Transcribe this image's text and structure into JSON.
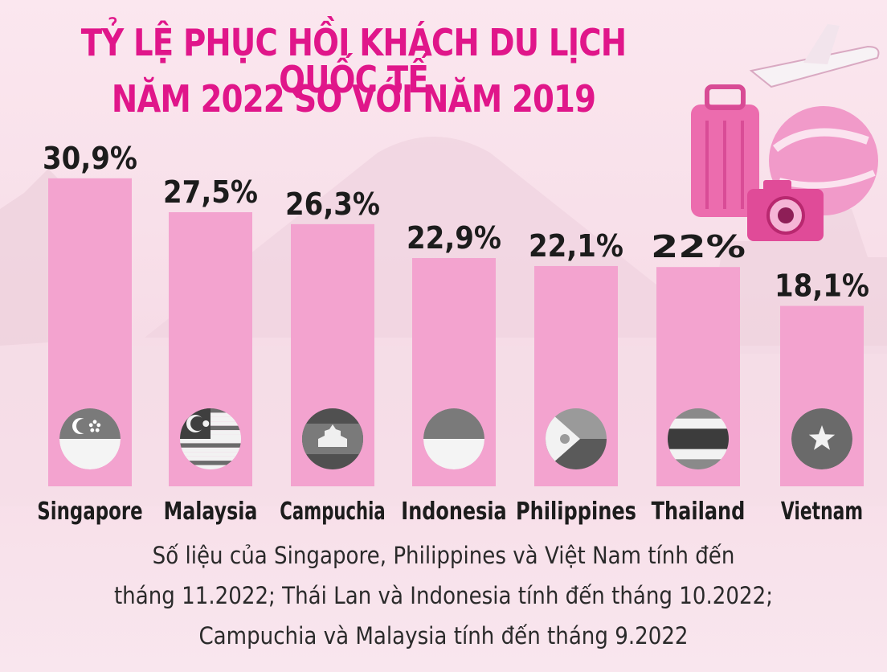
{
  "title_line1": "TỶ LỆ PHỤC HỒI KHÁCH DU LỊCH QUỐC TẾ",
  "title_line2": "NĂM 2022 SO VỚI NĂM 2019",
  "colors": {
    "title": "#e0168a",
    "bar": "#f3a3cf",
    "text": "#1c1c1c"
  },
  "chart_data": {
    "type": "bar",
    "categories": [
      "Singapore",
      "Malaysia",
      "Campuchia",
      "Indonesia",
      "Philippines",
      "Thailand",
      "Vietnam"
    ],
    "values": [
      30.9,
      27.5,
      26.3,
      22.9,
      22.1,
      22.0,
      18.1
    ],
    "value_labels": [
      "30,9%",
      "27,5%",
      "26,3%",
      "22,9%",
      "22,1%",
      "22%",
      "18,1%"
    ],
    "flags": [
      "singapore-flag-icon",
      "malaysia-flag-icon",
      "cambodia-flag-icon",
      "indonesia-flag-icon",
      "philippines-flag-icon",
      "thailand-flag-icon",
      "vietnam-flag-icon"
    ],
    "unit": "%",
    "title": "TỶ LỆ PHỤC HỒI KHÁCH DU LỊCH QUỐC TẾ NĂM 2022 SO VỚI NĂM 2019",
    "xlabel": "",
    "ylabel": "",
    "grid": false
  },
  "footnote": {
    "line1": "Số liệu của Singapore, Philippines và Việt Nam tính đến",
    "line2": "tháng 11.2022; Thái Lan và Indonesia tính đến tháng 10.2022;",
    "line3": "Campuchia và Malaysia tính đến tháng 9.2022"
  }
}
